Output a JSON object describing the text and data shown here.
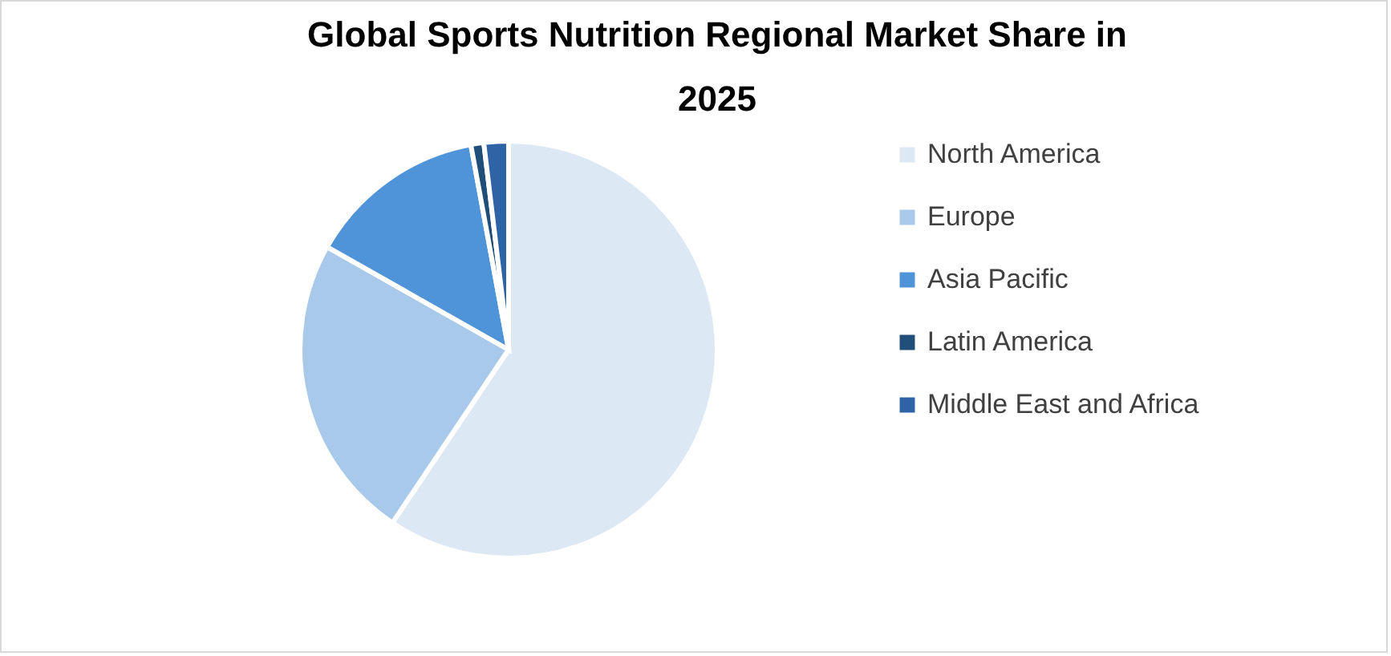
{
  "chart_data": {
    "type": "pie",
    "title": "Global Sports Nutrition Regional Market Share in 2025",
    "categories": [
      "North America",
      "Europe",
      "Asia Pacific",
      "Latin America",
      "Middle East and Africa"
    ],
    "values": [
      59.4,
      23.8,
      13.9,
      1.0,
      1.9
    ],
    "colors": [
      "#dde8f5",
      "#a9c9ea",
      "#4f94d8",
      "#1f4e79",
      "#2e64a6"
    ],
    "legend": "right"
  }
}
